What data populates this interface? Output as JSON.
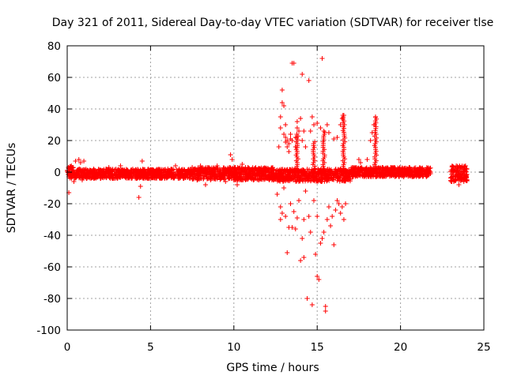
{
  "chart_data": {
    "type": "scatter",
    "title": "Day 321 of 2011, Sidereal Day-to-day VTEC variation (SDTVAR) for receiver tlse",
    "xlabel": "GPS time / hours",
    "ylabel": "SDTVAR / TECUs",
    "xlim": [
      0,
      25
    ],
    "ylim": [
      -100,
      80
    ],
    "xticks": [
      0,
      5,
      10,
      15,
      20,
      25
    ],
    "yticks": [
      -100,
      -80,
      -60,
      -40,
      -20,
      0,
      20,
      40,
      60,
      80
    ],
    "grid": true,
    "marker": "+",
    "color": "#ff0000",
    "series": [
      {
        "name": "SDTVAR",
        "points": [
          [
            0.1,
            -13
          ],
          [
            0.3,
            3
          ],
          [
            0.5,
            7
          ],
          [
            0.7,
            8
          ],
          [
            0.8,
            6
          ],
          [
            1.0,
            7
          ],
          [
            0.4,
            -6
          ],
          [
            0.9,
            -5
          ],
          [
            2.0,
            -4
          ],
          [
            2.5,
            3
          ],
          [
            3.0,
            -4
          ],
          [
            3.2,
            4
          ],
          [
            3.5,
            -3
          ],
          [
            4.3,
            -16
          ],
          [
            4.4,
            -9
          ],
          [
            4.5,
            7
          ],
          [
            4.6,
            -3
          ],
          [
            6.0,
            -3
          ],
          [
            6.5,
            4
          ],
          [
            7.0,
            -4
          ],
          [
            7.5,
            3
          ],
          [
            8.0,
            4
          ],
          [
            8.3,
            -8
          ],
          [
            8.6,
            -5
          ],
          [
            9.0,
            4
          ],
          [
            9.5,
            -6
          ],
          [
            9.8,
            11
          ],
          [
            9.9,
            8
          ],
          [
            10.0,
            -5
          ],
          [
            10.2,
            -8
          ],
          [
            10.5,
            5
          ],
          [
            11.0,
            -4
          ],
          [
            11.5,
            -5
          ],
          [
            12.0,
            -3
          ],
          [
            12.5,
            -4
          ],
          [
            12.7,
            16
          ],
          [
            12.8,
            28
          ],
          [
            12.8,
            35
          ],
          [
            12.9,
            44
          ],
          [
            12.9,
            52
          ],
          [
            13.0,
            42
          ],
          [
            13.0,
            24
          ],
          [
            13.1,
            19
          ],
          [
            13.1,
            22
          ],
          [
            13.1,
            30
          ],
          [
            13.2,
            20
          ],
          [
            13.2,
            16
          ],
          [
            13.3,
            13
          ],
          [
            13.3,
            18
          ],
          [
            13.4,
            24
          ],
          [
            13.4,
            21
          ],
          [
            13.5,
            20
          ],
          [
            13.5,
            69
          ],
          [
            13.6,
            69
          ],
          [
            13.7,
            22
          ],
          [
            13.7,
            16
          ],
          [
            13.8,
            32
          ],
          [
            13.8,
            28
          ],
          [
            13.9,
            26
          ],
          [
            14.0,
            34
          ],
          [
            14.1,
            62
          ],
          [
            14.1,
            20
          ],
          [
            14.2,
            26
          ],
          [
            14.3,
            16
          ],
          [
            14.5,
            58
          ],
          [
            14.6,
            26
          ],
          [
            14.7,
            35
          ],
          [
            14.8,
            30
          ],
          [
            15.0,
            31
          ],
          [
            15.2,
            28
          ],
          [
            15.3,
            72
          ],
          [
            15.4,
            26
          ],
          [
            15.6,
            30
          ],
          [
            15.7,
            25
          ],
          [
            16.0,
            21
          ],
          [
            16.2,
            22
          ],
          [
            16.4,
            30
          ],
          [
            16.5,
            34
          ],
          [
            16.6,
            36
          ],
          [
            17.5,
            8
          ],
          [
            17.6,
            6
          ],
          [
            18.0,
            8
          ],
          [
            18.2,
            20
          ],
          [
            18.3,
            25
          ],
          [
            18.4,
            30
          ],
          [
            18.5,
            35
          ],
          [
            12.6,
            -14
          ],
          [
            12.8,
            -22
          ],
          [
            12.8,
            -30
          ],
          [
            12.9,
            -26
          ],
          [
            13.0,
            -10
          ],
          [
            13.1,
            -28
          ],
          [
            13.2,
            -51
          ],
          [
            13.3,
            -35
          ],
          [
            13.4,
            -20
          ],
          [
            13.5,
            -35
          ],
          [
            13.6,
            -25
          ],
          [
            13.7,
            -36
          ],
          [
            13.8,
            -29
          ],
          [
            13.9,
            -18
          ],
          [
            14.0,
            -56
          ],
          [
            14.1,
            -42
          ],
          [
            14.2,
            -54
          ],
          [
            14.2,
            -30
          ],
          [
            14.3,
            -12
          ],
          [
            14.4,
            -80
          ],
          [
            14.5,
            -28
          ],
          [
            14.6,
            -38
          ],
          [
            14.7,
            -84
          ],
          [
            14.8,
            -18
          ],
          [
            14.9,
            -52
          ],
          [
            15.0,
            -28
          ],
          [
            15.0,
            -66
          ],
          [
            15.1,
            -68
          ],
          [
            15.2,
            -45
          ],
          [
            15.3,
            -42
          ],
          [
            15.4,
            -38
          ],
          [
            15.5,
            -85
          ],
          [
            15.5,
            -88
          ],
          [
            15.6,
            -30
          ],
          [
            15.7,
            -22
          ],
          [
            15.8,
            -34
          ],
          [
            15.9,
            -28
          ],
          [
            16.0,
            -46
          ],
          [
            16.1,
            -24
          ],
          [
            16.2,
            -18
          ],
          [
            16.3,
            -20
          ],
          [
            16.4,
            -26
          ],
          [
            16.5,
            -22
          ],
          [
            16.6,
            -30
          ],
          [
            16.7,
            -20
          ],
          [
            21.5,
            1
          ],
          [
            21.8,
            -1
          ],
          [
            23.1,
            4
          ],
          [
            23.2,
            -6
          ],
          [
            23.4,
            -3
          ],
          [
            23.5,
            -8
          ],
          [
            23.6,
            3
          ],
          [
            23.8,
            -6
          ],
          [
            23.9,
            4
          ]
        ]
      }
    ],
    "band": {
      "description": "dense continuous scatter around zero",
      "segments": [
        {
          "x": [
            0.0,
            0.4
          ],
          "center": 0,
          "halfwidth": 4
        },
        {
          "x": [
            0.4,
            7.5
          ],
          "center": -1,
          "halfwidth": 3
        },
        {
          "x": [
            7.5,
            12.5
          ],
          "center": -1,
          "halfwidth": 4
        },
        {
          "x": [
            12.5,
            17.0
          ],
          "center": -2,
          "halfwidth": 4
        },
        {
          "x": [
            17.0,
            21.8
          ],
          "center": 0,
          "halfwidth": 3
        },
        {
          "x": [
            23.0,
            24.0
          ],
          "center": -1,
          "halfwidth": 5
        }
      ]
    },
    "spikes": [
      {
        "x": 13.8,
        "top": 25
      },
      {
        "x": 14.8,
        "top": 20
      },
      {
        "x": 15.4,
        "top": 26
      },
      {
        "x": 16.6,
        "top": 36
      },
      {
        "x": 18.5,
        "top": 35
      }
    ]
  }
}
